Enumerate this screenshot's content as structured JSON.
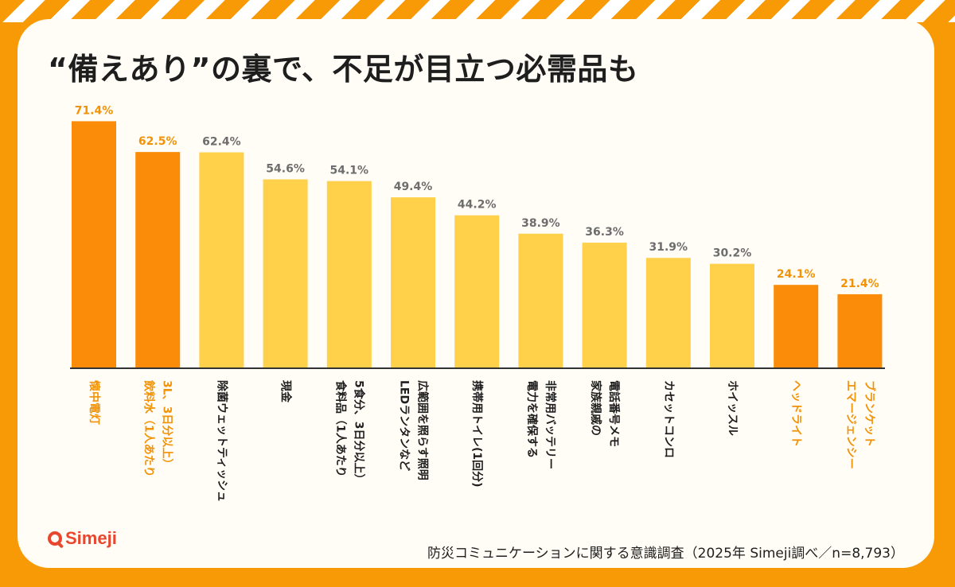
{
  "title": "“備えあり”の裏で、不足が目立つ必需品も",
  "logo_text": "Simeji",
  "source": "防災コミュニケーションに関する意識調査（2025年 Simeji調べ／n=8,793）",
  "colors": {
    "highlight_bar": "#FA8C0A",
    "normal_bar": "#FFD04A",
    "highlight_label": "#F29206",
    "normal_value": "#6D6D6D",
    "normal_label": "#1E1E1E",
    "background": "#F79A06",
    "card": "#FFFDF6"
  },
  "chart_data": {
    "type": "bar",
    "unit": "%",
    "ylim": [
      0,
      100
    ],
    "categories": [
      "懐中電灯",
      "飲料水（1人あたり\n3L、3日分以上）",
      "除菌ウェットティッシュ",
      "現金",
      "食料品（1人あたり\n5食分、3日分以上）",
      "LEDランタンなど\n広範囲を照らす照明",
      "携帯用トイレ(1回分)",
      "電力を確保する\n非常用バッテリー",
      "家族親戚の\n電話番号メモ",
      "カセットコンロ",
      "ホイッスル",
      "ヘッドライト",
      "エマージェンシー\nブランケット"
    ],
    "values": [
      71.4,
      62.5,
      62.4,
      54.6,
      54.1,
      49.4,
      44.2,
      38.9,
      36.3,
      31.9,
      30.2,
      24.1,
      21.4
    ],
    "value_labels": [
      "71.4%",
      "62.5%",
      "62.4%",
      "54.6%",
      "54.1%",
      "49.4%",
      "44.2%",
      "38.9%",
      "36.3%",
      "31.9%",
      "30.2%",
      "24.1%",
      "21.4%"
    ],
    "highlighted": [
      true,
      true,
      false,
      false,
      false,
      false,
      false,
      false,
      false,
      false,
      false,
      true,
      true
    ]
  }
}
